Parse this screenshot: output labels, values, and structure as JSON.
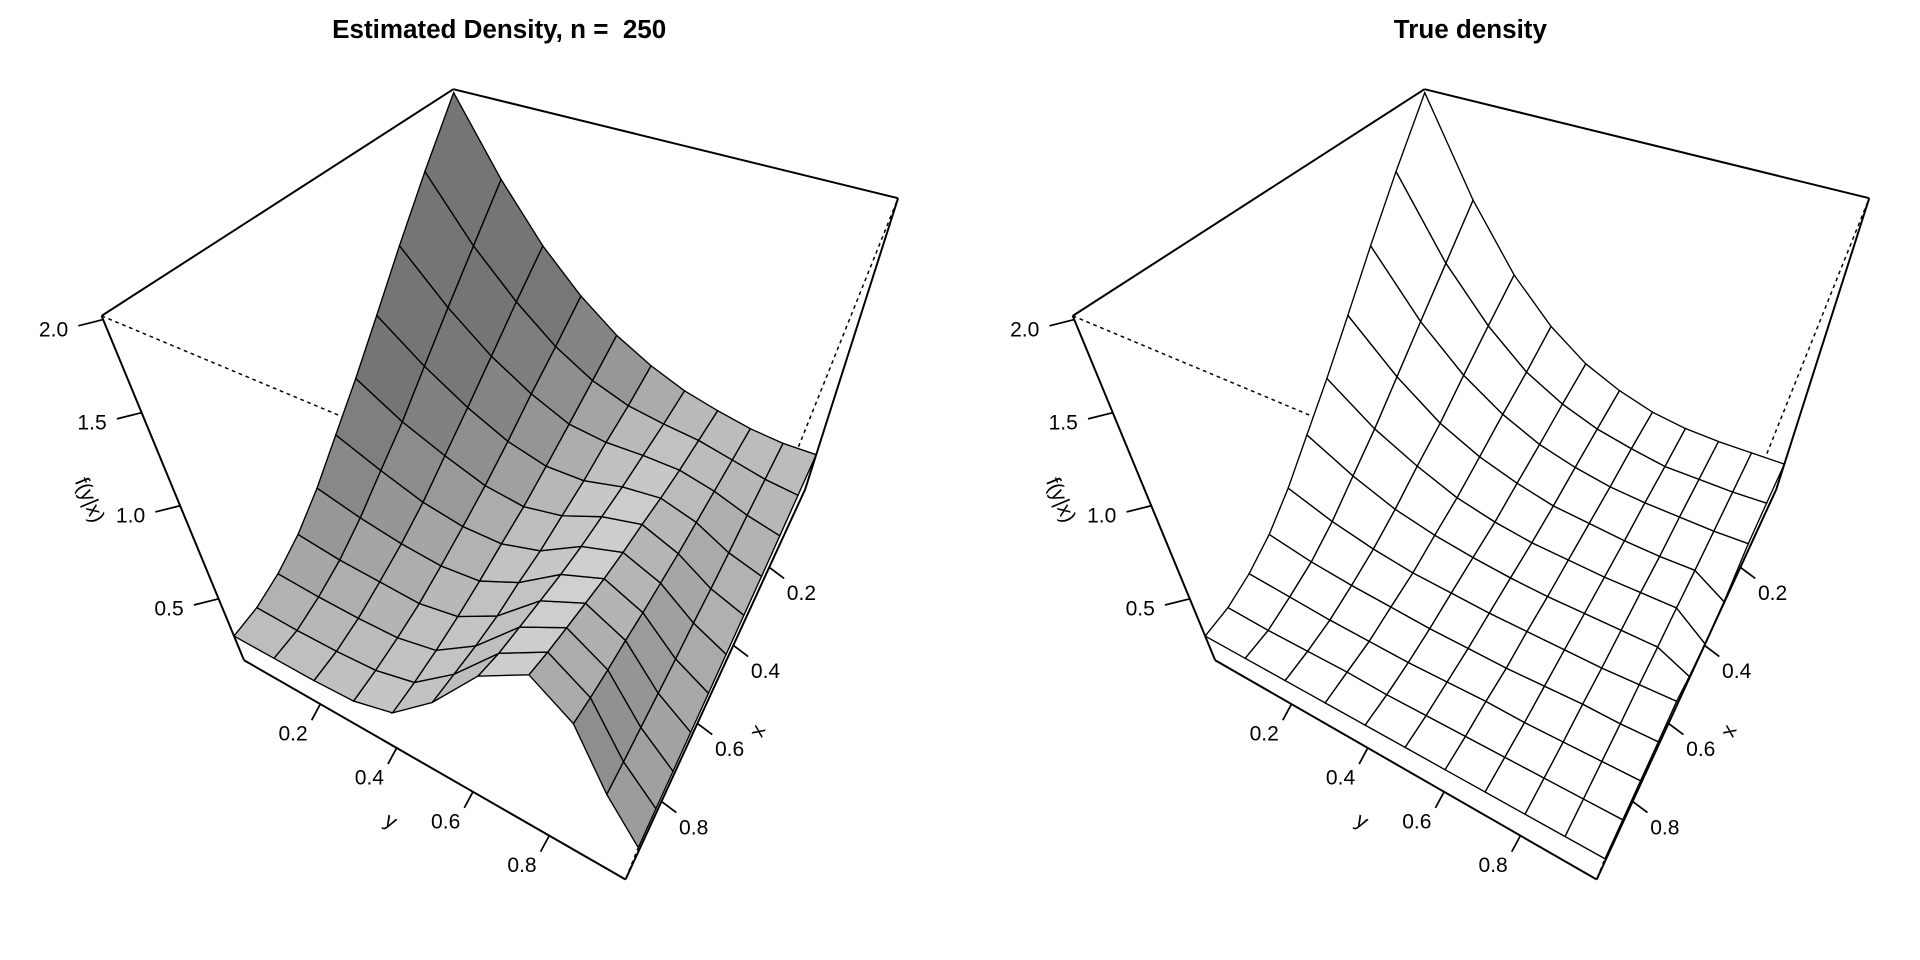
{
  "chart_data": [
    {
      "type": "surface",
      "title": "Estimated Density, n =  250",
      "xlabel": "x",
      "ylabel": "y",
      "zlabel": "f(y|x)",
      "color": "#d4d4d4",
      "shade": true,
      "xlim": [
        0,
        1
      ],
      "ylim": [
        0,
        1
      ],
      "zlim": [
        0.17,
        2.02
      ],
      "xticks": [
        0.2,
        0.4,
        0.6,
        0.8
      ],
      "yticks": [
        0.2,
        0.4,
        0.6,
        0.8
      ],
      "zticks": [
        0.5,
        {
          "value": 1,
          "label": "1.0"
        },
        1.5,
        {
          "value": 2,
          "label": "2.0"
        }
      ],
      "x": [
        0,
        0.1,
        0.2,
        0.3,
        0.4,
        0.5,
        0.6,
        0.7,
        0.8,
        0.9,
        1
      ],
      "y": [
        0,
        0.1,
        0.2,
        0.3,
        0.4,
        0.5,
        0.6,
        0.7,
        0.8,
        0.9,
        1
      ],
      "z": [
        [
          2.0,
          1.56,
          1.23,
          0.99,
          0.81,
          0.68,
          0.58,
          0.51,
          0.45,
          0.41,
          0.39
        ],
        [
          1.68,
          1.32,
          1.06,
          0.86,
          0.72,
          0.63,
          0.58,
          0.54,
          0.48,
          0.42,
          0.38
        ],
        [
          1.39,
          1.11,
          0.9,
          0.75,
          0.64,
          0.6,
          0.59,
          0.57,
          0.51,
          0.43,
          0.37
        ],
        [
          1.13,
          0.92,
          0.76,
          0.64,
          0.57,
          0.56,
          0.6,
          0.61,
          0.54,
          0.43,
          0.36
        ],
        [
          0.91,
          0.75,
          0.64,
          0.55,
          0.51,
          0.54,
          0.62,
          0.66,
          0.57,
          0.44,
          0.36
        ],
        [
          0.73,
          0.62,
          0.53,
          0.48,
          0.47,
          0.52,
          0.64,
          0.7,
          0.61,
          0.46,
          0.36
        ],
        [
          0.57,
          0.5,
          0.45,
          0.42,
          0.43,
          0.52,
          0.67,
          0.75,
          0.65,
          0.47,
          0.36
        ],
        [
          0.45,
          0.41,
          0.39,
          0.37,
          0.4,
          0.51,
          0.71,
          0.81,
          0.7,
          0.49,
          0.36
        ],
        [
          0.37,
          0.35,
          0.34,
          0.34,
          0.38,
          0.52,
          0.75,
          0.87,
          0.74,
          0.51,
          0.36
        ],
        [
          0.32,
          0.31,
          0.31,
          0.32,
          0.37,
          0.54,
          0.79,
          0.93,
          0.79,
          0.53,
          0.37
        ],
        [
          0.3,
          0.3,
          0.3,
          0.31,
          0.37,
          0.56,
          0.85,
          1.0,
          0.85,
          0.56,
          0.37
        ]
      ]
    },
    {
      "type": "surface",
      "title": "True density",
      "xlabel": "x",
      "ylabel": "y",
      "zlabel": "f(y|x)",
      "color": "#ffffff",
      "shade": false,
      "xlim": [
        0,
        1
      ],
      "ylim": [
        0,
        1
      ],
      "zlim": [
        0.17,
        2.02
      ],
      "xticks": [
        0.2,
        0.4,
        0.6,
        0.8
      ],
      "yticks": [
        0.2,
        0.4,
        0.6,
        0.8
      ],
      "zticks": [
        0.5,
        {
          "value": 1,
          "label": "1.0"
        },
        1.5,
        {
          "value": 2,
          "label": "2.0"
        }
      ],
      "x": [
        0,
        0.1,
        0.2,
        0.3,
        0.4,
        0.5,
        0.6,
        0.7,
        0.8,
        0.9,
        1
      ],
      "y": [
        0,
        0.1,
        0.2,
        0.3,
        0.4,
        0.5,
        0.6,
        0.7,
        0.8,
        0.9,
        1
      ],
      "z": [
        [
          2.0,
          1.44,
          1.06,
          0.81,
          0.64,
          0.53,
          0.45,
          0.4,
          0.37,
          0.35,
          0.33
        ],
        [
          1.68,
          1.22,
          0.92,
          0.71,
          0.58,
          0.49,
          0.43,
          0.38,
          0.36,
          0.34,
          0.33
        ],
        [
          1.39,
          1.03,
          0.79,
          0.63,
          0.52,
          0.45,
          0.4,
          0.37,
          0.35,
          0.33,
          0.32
        ],
        [
          1.13,
          0.86,
          0.67,
          0.55,
          0.47,
          0.41,
          0.38,
          0.35,
          0.33,
          0.32,
          0.2
        ],
        [
          0.91,
          0.71,
          0.58,
          0.48,
          0.42,
          0.38,
          0.36,
          0.34,
          0.33,
          0.32,
          0.18
        ],
        [
          0.73,
          0.59,
          0.49,
          0.43,
          0.39,
          0.36,
          0.34,
          0.33,
          0.32,
          0.31,
          0.22
        ],
        [
          0.57,
          0.48,
          0.42,
          0.38,
          0.36,
          0.34,
          0.33,
          0.32,
          0.31,
          0.31,
          0.31
        ],
        [
          0.45,
          0.4,
          0.37,
          0.35,
          0.33,
          0.32,
          0.31,
          0.31,
          0.31,
          0.3,
          0.3
        ],
        [
          0.37,
          0.35,
          0.33,
          0.32,
          0.31,
          0.31,
          0.31,
          0.3,
          0.3,
          0.3,
          0.3
        ],
        [
          0.32,
          0.31,
          0.31,
          0.31,
          0.3,
          0.3,
          0.3,
          0.3,
          0.3,
          0.3,
          0.3
        ],
        [
          0.3,
          0.3,
          0.3,
          0.3,
          0.3,
          0.3,
          0.3,
          0.3,
          0.3,
          0.3,
          0.3
        ]
      ]
    }
  ]
}
